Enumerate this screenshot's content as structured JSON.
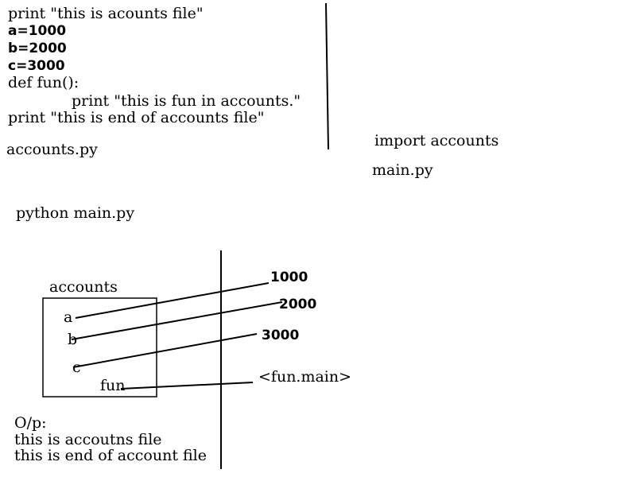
{
  "accounts_file": {
    "line1": "print \"this is acounts file\"",
    "line2": "a=1000",
    "line3": "b=2000",
    "line4": "c=3000",
    "line5": "def fun():",
    "line6": "print \"this is fun in accounts.\"",
    "line7": "print \"this is end of accounts file\"",
    "filename": "accounts.py"
  },
  "main_file": {
    "code": "import accounts",
    "filename": "main.py"
  },
  "command": "python main.py",
  "diagram": {
    "module_label": "accounts",
    "vars": [
      "a",
      "b",
      "c",
      "fun"
    ],
    "values": [
      "1000",
      "2000",
      "3000",
      "<fun.main>"
    ]
  },
  "output": {
    "label": "O/p:",
    "line1": "this is accoutns file",
    "line2": "this is end of account file"
  }
}
